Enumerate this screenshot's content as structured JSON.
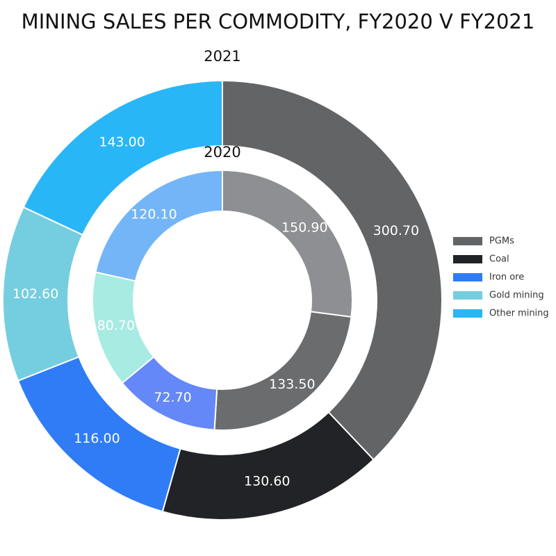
{
  "chart_data": {
    "type": "donut",
    "title": "MINING SALES PER COMMODITY, FY2020 V FY2021",
    "categories": [
      "PGMs",
      "Coal",
      "Iron ore",
      "Gold mining",
      "Other mining"
    ],
    "series": [
      {
        "name": "2021",
        "values": [
          300.7,
          130.6,
          116.0,
          102.6,
          143.0
        ],
        "value_labels": [
          "300.70",
          "130.60",
          "116.00",
          "102.60",
          "143.00"
        ],
        "colors": [
          "#636466",
          "#222326",
          "#2f7cf6",
          "#75cedf",
          "#29b6f6"
        ]
      },
      {
        "name": "2020",
        "values": [
          150.9,
          133.5,
          72.7,
          80.7,
          120.1
        ],
        "value_labels": [
          "150.90",
          "133.50",
          "72.70",
          "80.70",
          "120.10"
        ],
        "colors": [
          "#8e8f92",
          "#6b6c6e",
          "#6488f7",
          "#a7ebe3",
          "#74b5f8"
        ]
      }
    ],
    "legend": "right"
  }
}
